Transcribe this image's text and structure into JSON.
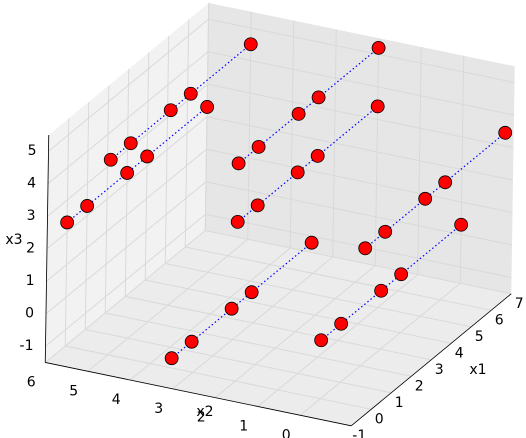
{
  "chart_data": {
    "type": "scatter3d",
    "xlabel": "x1",
    "ylabel": "x2",
    "zlabel": "x3",
    "xlim": [
      -1,
      7
    ],
    "ylim": [
      -1.2,
      6
    ],
    "zlim": [
      -1.5,
      5.5
    ],
    "xticks": [
      -1,
      0,
      1,
      2,
      3,
      4,
      5,
      6,
      7
    ],
    "yticks": [
      0,
      1,
      2,
      3,
      4,
      5,
      6
    ],
    "zticks": [
      -1,
      0,
      1,
      2,
      3,
      4,
      5
    ],
    "grid": true,
    "marker_color": "#ff0000",
    "line_color": "#0000ff",
    "line_style": "dotted",
    "series": [
      {
        "x": [
          0,
          1,
          3,
          4,
          7
        ],
        "y": [
          6,
          6,
          6,
          6,
          6
        ],
        "z": [
          2.3,
          2.3,
          2.3,
          2.3,
          2.3
        ]
      },
      {
        "x": [
          0,
          1,
          3,
          4,
          7
        ],
        "y": [
          5,
          5,
          5,
          5,
          5
        ],
        "z": [
          4.5,
          4.5,
          4.5,
          4.5,
          4.5
        ]
      },
      {
        "x": [
          0,
          1,
          3,
          4,
          7
        ],
        "y": [
          2,
          2,
          2,
          2,
          2
        ],
        "z": [
          5.2,
          5.2,
          5.2,
          5.2,
          5.2
        ]
      },
      {
        "x": [
          0,
          1,
          3,
          4,
          7
        ],
        "y": [
          2,
          2,
          2,
          2,
          2
        ],
        "z": [
          3.4,
          3.4,
          3.4,
          3.4,
          3.4
        ]
      },
      {
        "x": [
          0,
          1,
          3,
          4,
          7
        ],
        "y": [
          3.5,
          3.5,
          3.5,
          3.5,
          3.5
        ],
        "z": [
          -1.2,
          -1.2,
          -1.2,
          -1.2,
          -1.2
        ]
      },
      {
        "x": [
          0,
          1,
          3,
          4,
          7
        ],
        "y": [
          0,
          0,
          0,
          0,
          0
        ],
        "z": [
          0.3,
          0.3,
          0.3,
          0.3,
          0.3
        ]
      },
      {
        "x": [
          0,
          1,
          3,
          4,
          7
        ],
        "y": [
          -1,
          -1,
          -1,
          -1,
          -1
        ],
        "z": [
          3.4,
          3.4,
          3.4,
          3.4,
          3.4
        ]
      }
    ]
  }
}
